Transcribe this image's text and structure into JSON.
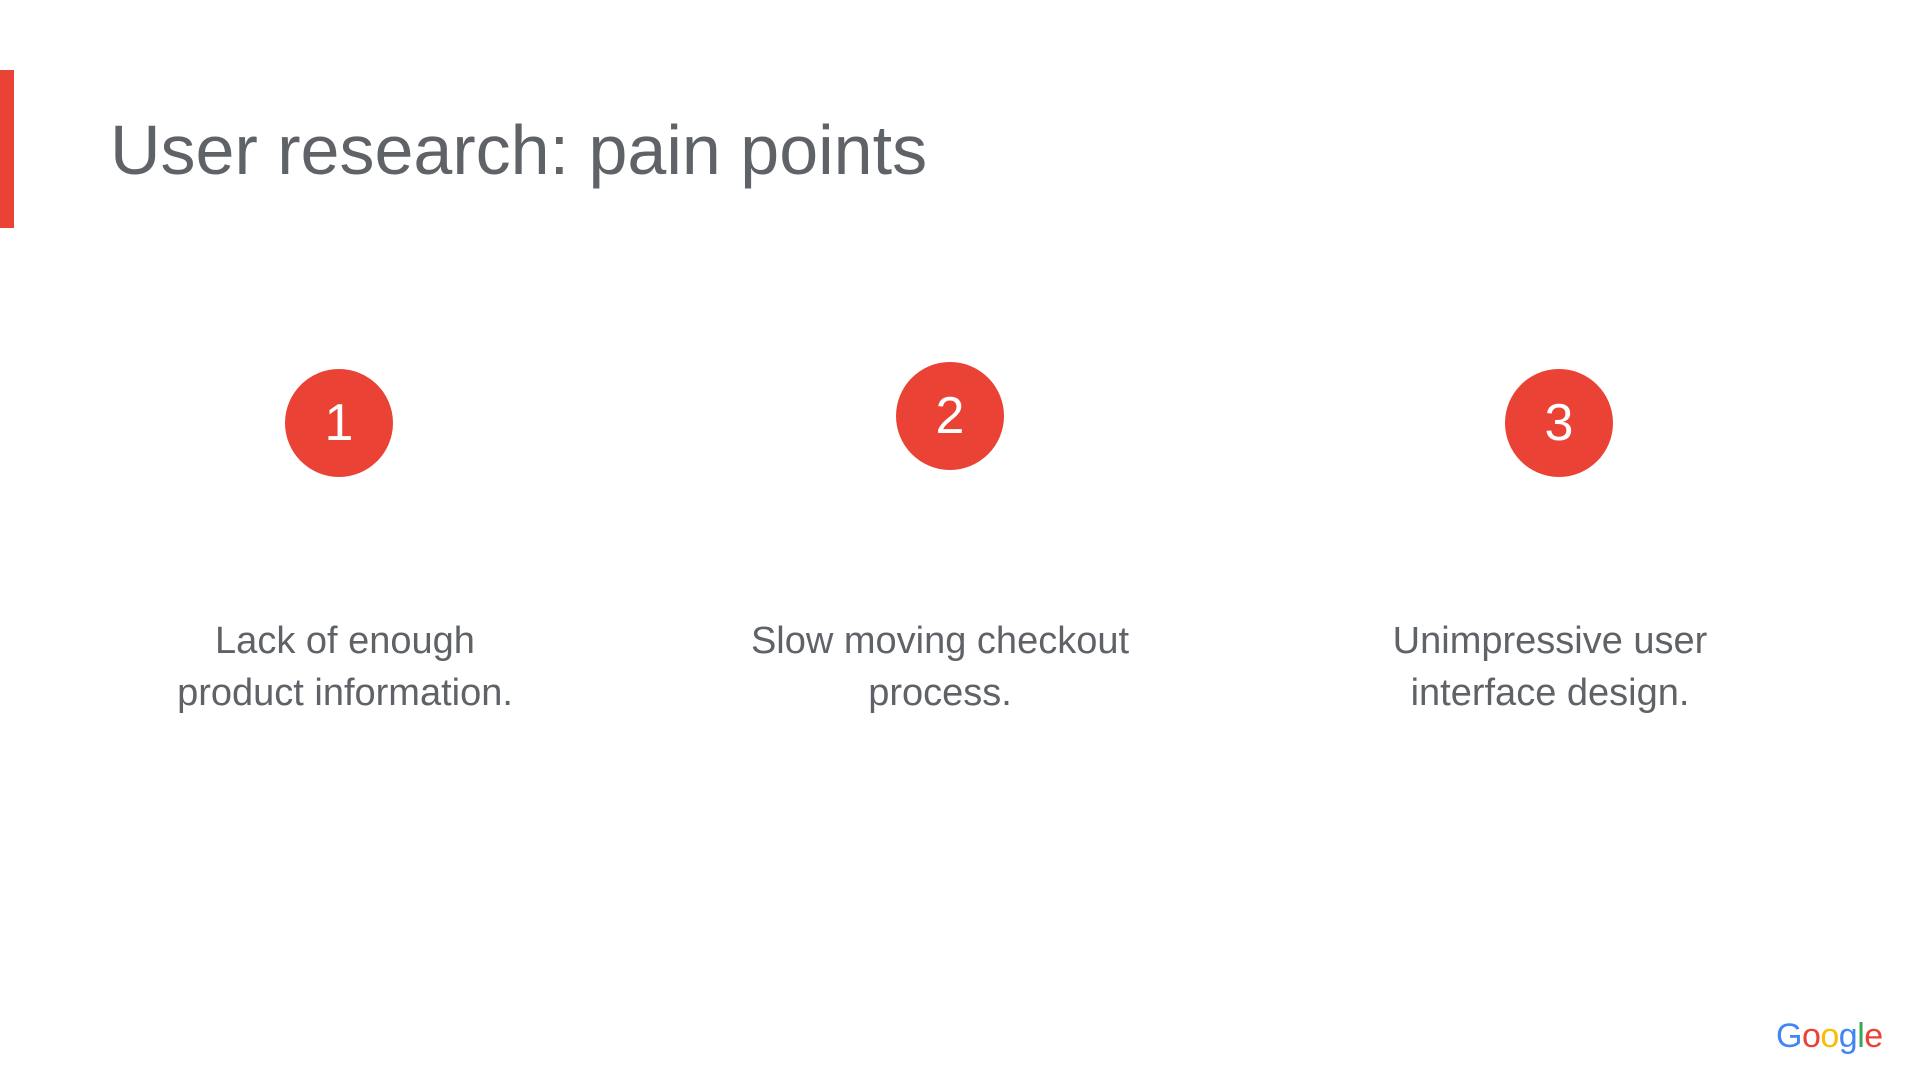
{
  "slide": {
    "title": "User research: pain points",
    "accent_color": "#ea4335",
    "points": [
      {
        "number": "1",
        "line1": "Lack of enough",
        "line2": "product information."
      },
      {
        "number": "2",
        "line1": "Slow moving checkout",
        "line2": "process."
      },
      {
        "number": "3",
        "line1": "Unimpressive user",
        "line2": "interface design."
      }
    ]
  },
  "footer": {
    "logo_letters": [
      "G",
      "o",
      "o",
      "g",
      "l",
      "e"
    ],
    "logo_colors": [
      "#4285f4",
      "#ea4335",
      "#fbbc05",
      "#4285f4",
      "#34a853",
      "#ea4335"
    ]
  }
}
